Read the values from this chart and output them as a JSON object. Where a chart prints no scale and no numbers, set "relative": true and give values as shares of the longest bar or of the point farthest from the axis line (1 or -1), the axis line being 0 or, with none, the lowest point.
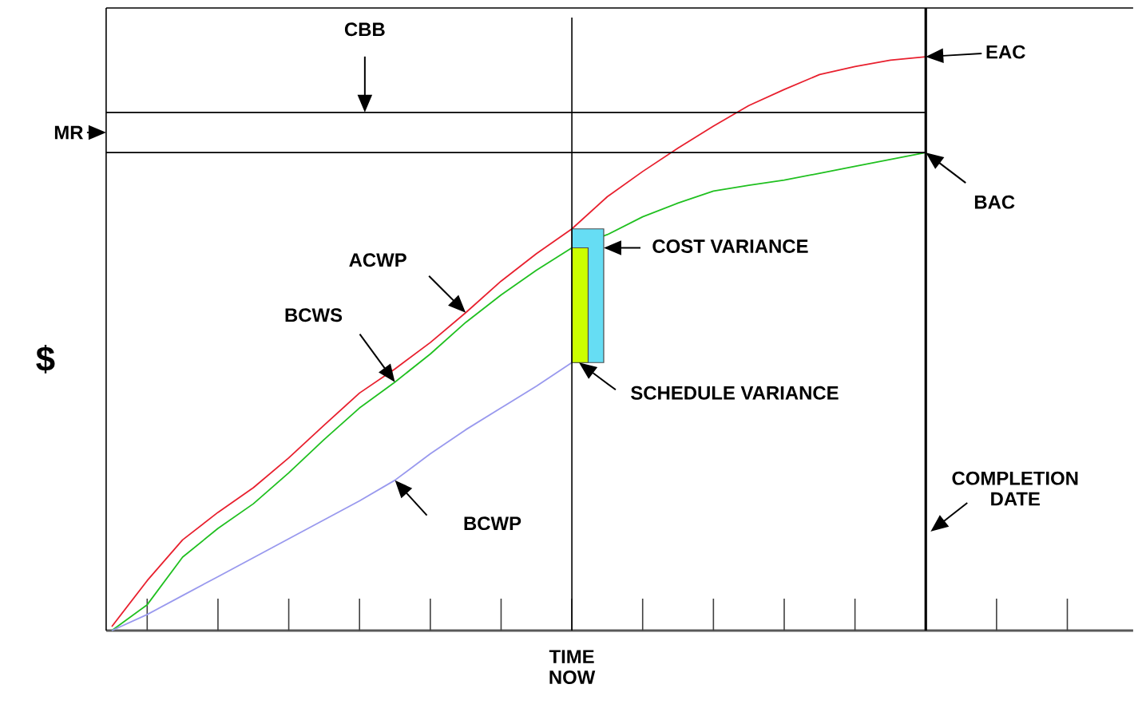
{
  "chart_data": {
    "type": "line",
    "relative": true,
    "ylabel": "$",
    "categories": [
      null,
      null,
      null,
      null,
      null,
      null,
      null,
      null,
      null,
      null,
      null,
      null,
      null,
      null,
      null,
      null,
      null,
      null,
      null,
      null,
      null,
      null,
      null,
      null,
      null,
      null,
      null,
      null,
      null
    ],
    "series": [
      {
        "color": "#e8202e",
        "values": [
          0.007,
          0.087,
          0.158,
          0.206,
          0.249,
          0.301,
          0.358,
          0.414,
          0.456,
          0.502,
          0.554,
          0.609,
          0.657,
          0.7,
          0.756,
          0.8,
          0.841,
          0.879,
          0.915,
          0.943,
          0.969,
          0.983,
          0.994,
          1.0,
          null,
          null,
          null,
          null,
          null
        ]
      },
      {
        "color": "#20c020",
        "values": [
          0,
          0.045,
          0.128,
          0.178,
          0.221,
          0.275,
          0.333,
          0.388,
          0.433,
          0.482,
          0.537,
          0.585,
          0.628,
          0.667,
          0.69,
          0.721,
          0.745,
          0.766,
          0.776,
          0.785,
          0.797,
          0.809,
          0.821,
          0.833,
          null,
          null,
          null,
          null,
          null
        ]
      },
      {
        "color": "#9999ee",
        "values": [
          0,
          0.028,
          0.061,
          0.094,
          0.127,
          0.16,
          0.193,
          0.226,
          0.262,
          0.308,
          0.35,
          0.388,
          0.426,
          0.467,
          null,
          null,
          null,
          null,
          null,
          null,
          null,
          null,
          null,
          null,
          null,
          null,
          null,
          null,
          null
        ]
      }
    ],
    "ref_lines": [
      {
        "axis": "y",
        "value": 0.903
      },
      {
        "axis": "y",
        "value": 0.833
      }
    ],
    "annotations": [
      "CBB",
      "MR",
      "EAC",
      "BAC",
      "ACWP",
      "BCWS",
      "BCWP",
      "COST VARIANCE",
      "SCHEDULE VARIANCE",
      "TIME NOW",
      "COMPLETION DATE"
    ]
  }
}
